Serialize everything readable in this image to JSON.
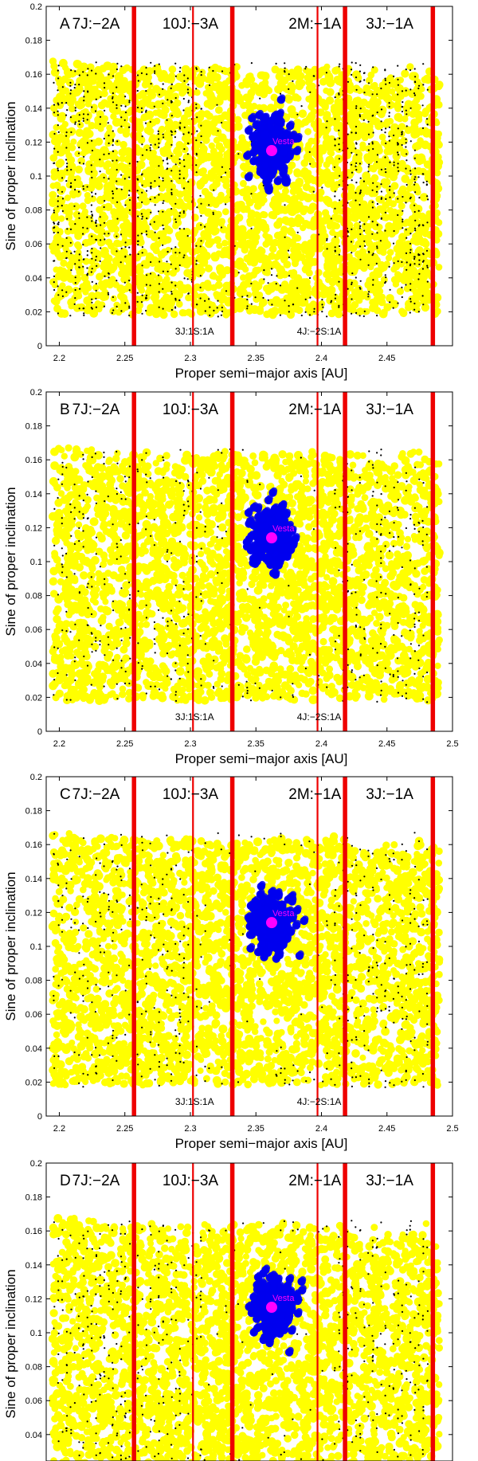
{
  "chart_data": [
    {
      "type": "scatter",
      "panel": "A",
      "xlabel": "Proper semi−major axis [AU]",
      "ylabel": "Sine of proper inclination",
      "xlim": [
        2.19,
        2.5
      ],
      "ylim": [
        0,
        0.2
      ],
      "xticks": [
        "2.2",
        "2.25",
        "2.3",
        "2.35",
        "2.4",
        "2.45",
        ""
      ],
      "yticks": [
        "0",
        "0.02",
        "0.04",
        "0.06",
        "0.08",
        "0.1",
        "0.12",
        "0.14",
        "0.16",
        "0.18",
        "0.2"
      ],
      "vesta": {
        "a": 2.362,
        "sini": 0.115,
        "label": "Vesta"
      }
    },
    {
      "type": "scatter",
      "panel": "B",
      "xlabel": "Proper semi−major axis [AU]",
      "ylabel": "Sine of proper inclination",
      "xlim": [
        2.19,
        2.5
      ],
      "ylim": [
        0,
        0.2
      ],
      "xticks": [
        "2.2",
        "2.25",
        "2.3",
        "2.35",
        "2.4",
        "2.45",
        "2.5"
      ],
      "yticks": [
        "0",
        "0.02",
        "0.04",
        "0.06",
        "0.08",
        "0.1",
        "0.12",
        "0.14",
        "0.16",
        "0.18",
        "0.2"
      ],
      "vesta": {
        "a": 2.362,
        "sini": 0.114,
        "label": "Vesta"
      }
    },
    {
      "type": "scatter",
      "panel": "C",
      "xlabel": "Proper semi−major axis [AU]",
      "ylabel": "Sine of proper inclination",
      "xlim": [
        2.19,
        2.5
      ],
      "ylim": [
        0,
        0.2
      ],
      "xticks": [
        "2.2",
        "2.25",
        "2.3",
        "2.35",
        "2.4",
        "2.45",
        "2.5"
      ],
      "yticks": [
        "0",
        "0.02",
        "0.04",
        "0.06",
        "0.08",
        "0.1",
        "0.12",
        "0.14",
        "0.16",
        "0.18",
        "0.2"
      ],
      "vesta": {
        "a": 2.362,
        "sini": 0.114,
        "label": "Vesta"
      }
    },
    {
      "type": "scatter",
      "panel": "D",
      "xlabel": "",
      "ylabel": "Sine of proper inclination",
      "xlim": [
        2.19,
        2.5
      ],
      "ylim": [
        0,
        0.2
      ],
      "xticks": [],
      "yticks": [
        "",
        "",
        "0.04",
        "0.06",
        "0.08",
        "0.1",
        "0.12",
        "0.14",
        "0.16",
        "0.18",
        "0.2"
      ],
      "vesta": {
        "a": 2.362,
        "sini": 0.115,
        "label": "Vesta"
      }
    }
  ],
  "resonances": {
    "thick": [
      {
        "a": 2.257,
        "label": "7J:−2A"
      },
      {
        "a": 2.332,
        "label": "10J:−3A"
      },
      {
        "a": 2.418,
        "label": "2M:−1A"
      },
      {
        "a": 2.485,
        "label": "3J:−1A"
      }
    ],
    "thin": [
      {
        "a": 2.302,
        "label": "3J:1S:1A"
      },
      {
        "a": 2.397,
        "label": "4J:−2S:1A"
      }
    ]
  },
  "colors": {
    "background_orbits": "#ffff00",
    "local_orbits": "#000000",
    "vesta_family": "#0000ee",
    "vesta": "#ff00ff",
    "resonance": "#ee0000"
  }
}
